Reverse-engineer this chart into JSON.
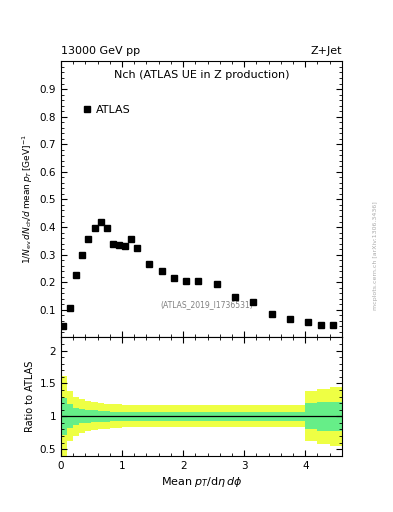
{
  "title_top": "13000 GeV pp",
  "title_top_right": "Z+Jet",
  "plot_title": "Nch (ATLAS UE in Z production)",
  "watermark": "(ATLAS_2019_I1736531)",
  "legend_label": "ATLAS",
  "side_text": "mcplots.cern.ch [arXiv:1306.3436]",
  "ylabel_main": "1/N_{ev} dN_{ch}/d mean p_T [GeV]^{-1}",
  "ylabel_ratio": "Ratio to ATLAS",
  "xlabel": "Mean p_{T}/dη dφ",
  "atlas_x": [
    0.04,
    0.15,
    0.25,
    0.35,
    0.45,
    0.55,
    0.65,
    0.75,
    0.85,
    0.95,
    1.05,
    1.15,
    1.25,
    1.45,
    1.65,
    1.85,
    2.05,
    2.25,
    2.55,
    2.85,
    3.15,
    3.45,
    3.75,
    4.05,
    4.25,
    4.45
  ],
  "atlas_y": [
    0.04,
    0.105,
    0.225,
    0.3,
    0.355,
    0.395,
    0.42,
    0.395,
    0.34,
    0.335,
    0.33,
    0.355,
    0.325,
    0.265,
    0.24,
    0.215,
    0.205,
    0.205,
    0.195,
    0.145,
    0.13,
    0.085,
    0.065,
    0.055,
    0.045,
    0.045
  ],
  "ratio_x_edges": [
    0.0,
    0.1,
    0.2,
    0.3,
    0.4,
    0.5,
    0.6,
    0.7,
    0.8,
    0.9,
    1.0,
    1.1,
    1.2,
    1.4,
    1.6,
    1.8,
    2.0,
    2.2,
    2.5,
    2.8,
    3.1,
    3.4,
    3.7,
    4.0,
    4.2,
    4.4,
    4.6
  ],
  "ratio_green_low": [
    0.72,
    0.82,
    0.87,
    0.89,
    0.9,
    0.91,
    0.92,
    0.92,
    0.93,
    0.93,
    0.93,
    0.93,
    0.93,
    0.93,
    0.93,
    0.93,
    0.93,
    0.93,
    0.93,
    0.93,
    0.93,
    0.93,
    0.93,
    0.8,
    0.78,
    0.78
  ],
  "ratio_green_high": [
    1.28,
    1.18,
    1.13,
    1.11,
    1.1,
    1.09,
    1.08,
    1.08,
    1.07,
    1.07,
    1.07,
    1.07,
    1.07,
    1.07,
    1.07,
    1.07,
    1.07,
    1.07,
    1.07,
    1.07,
    1.07,
    1.07,
    1.07,
    1.2,
    1.22,
    1.22
  ],
  "ratio_yellow_low": [
    0.38,
    0.62,
    0.7,
    0.74,
    0.77,
    0.79,
    0.8,
    0.81,
    0.82,
    0.82,
    0.83,
    0.83,
    0.83,
    0.83,
    0.83,
    0.83,
    0.83,
    0.83,
    0.83,
    0.83,
    0.83,
    0.83,
    0.83,
    0.62,
    0.58,
    0.55
  ],
  "ratio_yellow_high": [
    1.62,
    1.38,
    1.3,
    1.26,
    1.23,
    1.21,
    1.2,
    1.19,
    1.18,
    1.18,
    1.17,
    1.17,
    1.17,
    1.17,
    1.17,
    1.17,
    1.17,
    1.17,
    1.17,
    1.17,
    1.17,
    1.17,
    1.17,
    1.38,
    1.42,
    1.45
  ],
  "main_ylim": [
    0,
    1.0
  ],
  "main_yticks": [
    0.1,
    0.2,
    0.3,
    0.4,
    0.5,
    0.6,
    0.7,
    0.8,
    0.9
  ],
  "ratio_ylim": [
    0.4,
    2.2
  ],
  "ratio_yticks": [
    0.5,
    1.0,
    1.5,
    2.0
  ],
  "ratio_yticklabels": [
    "0.5",
    "1",
    "1.5",
    "2"
  ],
  "xlim": [
    0.0,
    4.6
  ],
  "xticks": [
    0,
    1,
    2,
    3,
    4
  ],
  "marker_color": "#000000",
  "marker_size": 4,
  "green_color": "#66ee88",
  "yellow_color": "#eeff44",
  "ratio_line_color": "#000000"
}
